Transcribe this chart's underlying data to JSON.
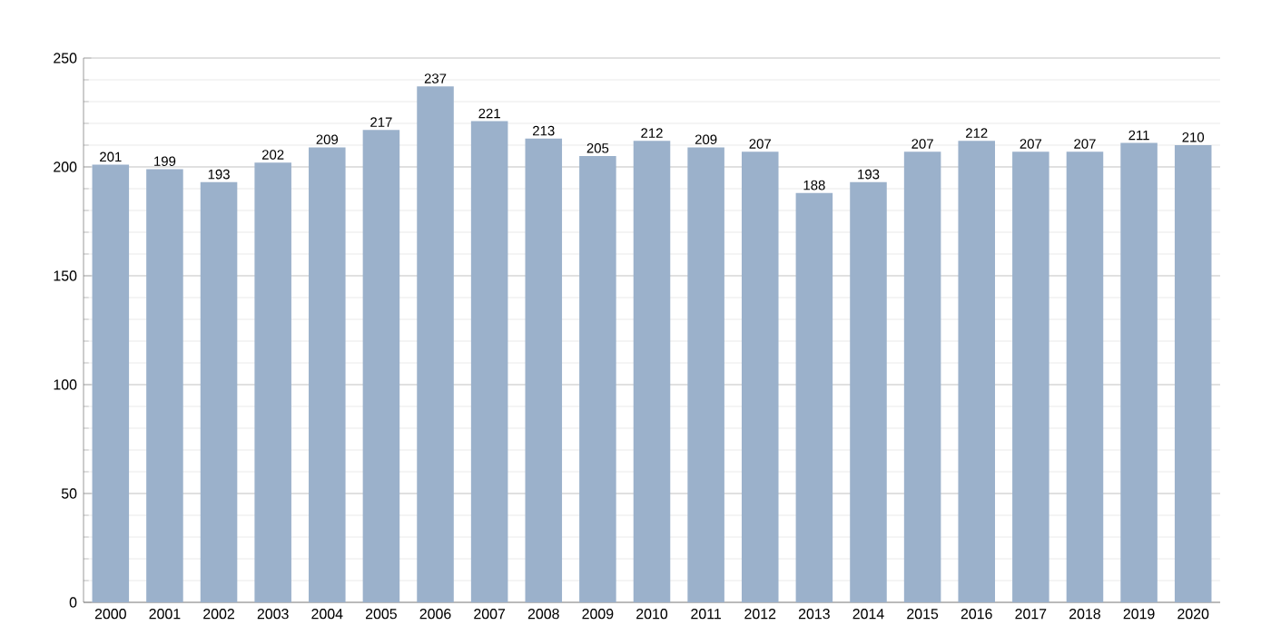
{
  "chart_data": {
    "type": "bar",
    "categories": [
      "2000",
      "2001",
      "2002",
      "2003",
      "2004",
      "2005",
      "2006",
      "2007",
      "2008",
      "2009",
      "2010",
      "2011",
      "2012",
      "2013",
      "2014",
      "2015",
      "2016",
      "2017",
      "2018",
      "2019",
      "2020"
    ],
    "values": [
      201,
      199,
      193,
      202,
      209,
      217,
      237,
      221,
      213,
      205,
      212,
      209,
      207,
      188,
      193,
      207,
      212,
      207,
      207,
      211,
      210
    ],
    "color": "#9bb1cb",
    "ylim": [
      0,
      250
    ],
    "yticks": [
      0,
      50,
      100,
      150,
      200,
      250
    ],
    "grid": "y",
    "data_labels": true
  }
}
